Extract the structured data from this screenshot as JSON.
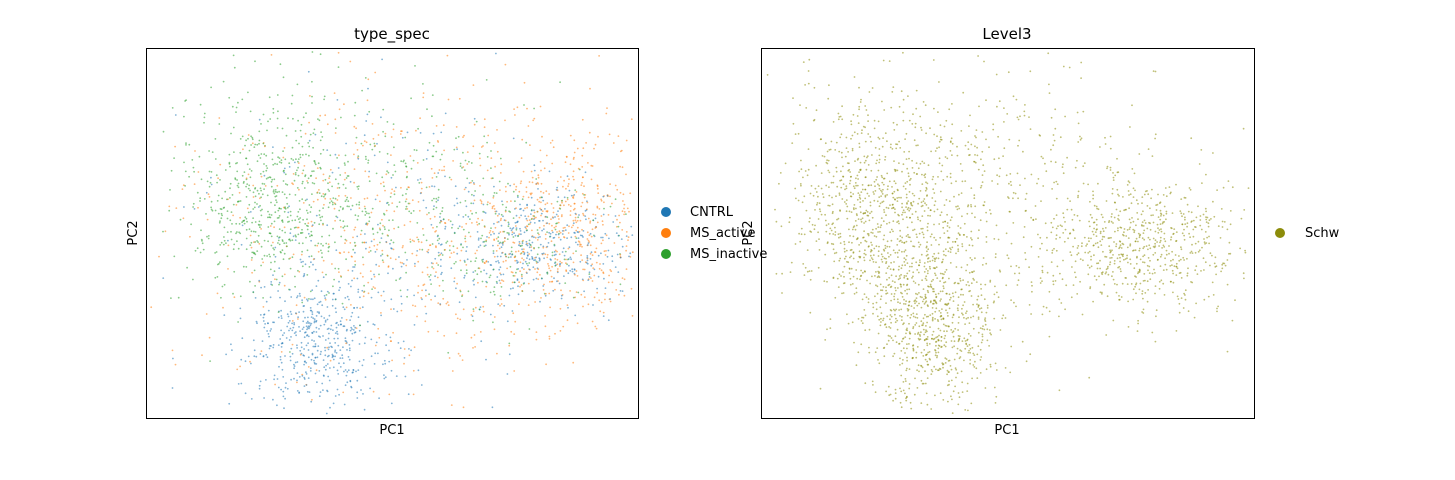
{
  "chart_data": [
    {
      "type": "scatter",
      "title": "type_spec",
      "xlabel": "PC1",
      "ylabel": "PC2",
      "xticks": [],
      "yticks": [],
      "grid": false,
      "legend_position": "right-outside",
      "legend": [
        {
          "label": "CNTRL",
          "color": "#1f77b4"
        },
        {
          "label": "MS_active",
          "color": "#ff7f0e"
        },
        {
          "label": "MS_inactive",
          "color": "#2ca02c"
        }
      ],
      "series": [
        {
          "name": "CNTRL",
          "color": "#1f77b4",
          "density_clusters": [
            {
              "cx": 0.35,
              "cy": 0.2,
              "sx": 0.07,
              "sy": 0.09,
              "weight": 0.45
            },
            {
              "cx": 0.8,
              "cy": 0.47,
              "sx": 0.1,
              "sy": 0.08,
              "weight": 0.35
            },
            {
              "cx": 0.45,
              "cy": 0.5,
              "sx": 0.18,
              "sy": 0.2,
              "weight": 0.2
            }
          ]
        },
        {
          "name": "MS_active",
          "color": "#ff7f0e",
          "density_clusters": [
            {
              "cx": 0.55,
              "cy": 0.5,
              "sx": 0.22,
              "sy": 0.2,
              "weight": 0.6
            },
            {
              "cx": 0.85,
              "cy": 0.5,
              "sx": 0.09,
              "sy": 0.12,
              "weight": 0.4
            }
          ]
        },
        {
          "name": "MS_inactive",
          "color": "#2ca02c",
          "density_clusters": [
            {
              "cx": 0.22,
              "cy": 0.58,
              "sx": 0.08,
              "sy": 0.14,
              "weight": 0.4
            },
            {
              "cx": 0.35,
              "cy": 0.55,
              "sx": 0.09,
              "sy": 0.09,
              "weight": 0.15
            },
            {
              "cx": 0.45,
              "cy": 0.65,
              "sx": 0.16,
              "sy": 0.16,
              "weight": 0.25
            },
            {
              "cx": 0.72,
              "cy": 0.48,
              "sx": 0.12,
              "sy": 0.1,
              "weight": 0.2
            }
          ]
        }
      ]
    },
    {
      "type": "scatter",
      "title": "Level3",
      "xlabel": "PC1",
      "ylabel": "PC2",
      "xticks": [],
      "yticks": [],
      "grid": false,
      "legend_position": "right-outside",
      "legend": [
        {
          "label": "Schw",
          "color": "#8c8c0a"
        }
      ],
      "series": [
        {
          "name": "Schw",
          "color": "#8c8c0a",
          "density_clusters": [
            {
              "cx": 0.22,
              "cy": 0.6,
              "sx": 0.08,
              "sy": 0.14,
              "weight": 0.22
            },
            {
              "cx": 0.35,
              "cy": 0.22,
              "sx": 0.07,
              "sy": 0.09,
              "weight": 0.2
            },
            {
              "cx": 0.3,
              "cy": 0.42,
              "sx": 0.09,
              "sy": 0.1,
              "weight": 0.15
            },
            {
              "cx": 0.45,
              "cy": 0.6,
              "sx": 0.18,
              "sy": 0.18,
              "weight": 0.18
            },
            {
              "cx": 0.78,
              "cy": 0.47,
              "sx": 0.11,
              "sy": 0.09,
              "weight": 0.25
            }
          ]
        }
      ]
    }
  ]
}
